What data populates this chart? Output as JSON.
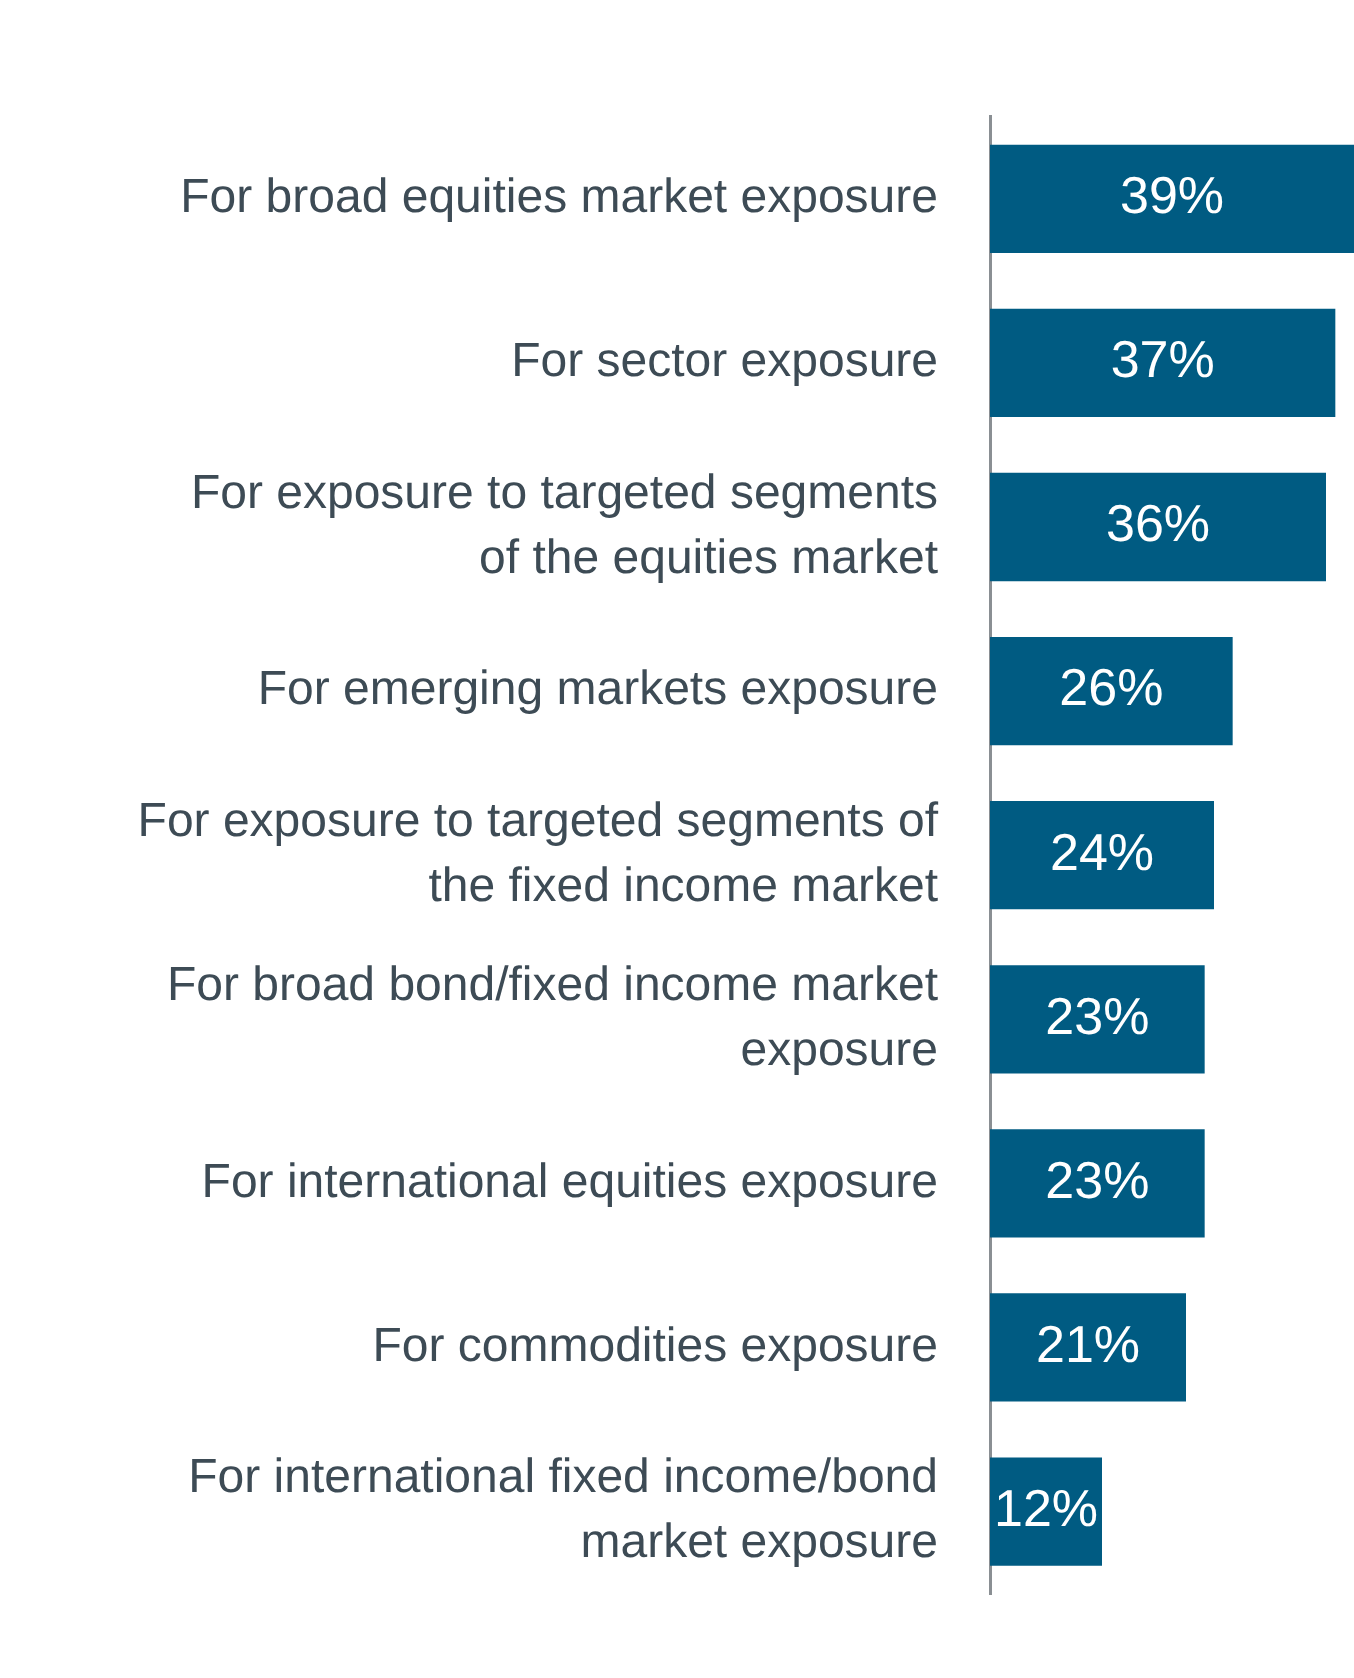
{
  "chart_data": {
    "type": "bar",
    "orientation": "horizontal",
    "categories": [
      "For broad equities market exposure",
      "For sector exposure",
      "For exposure to targeted segments\nof the equities market",
      "For emerging markets exposure",
      "For exposure to targeted segments of\nthe fixed income market",
      "For broad bond/fixed income market\nexposure",
      "For international equities exposure",
      "For commodities exposure",
      "For international fixed income/bond\nmarket exposure"
    ],
    "values": [
      39,
      37,
      36,
      26,
      24,
      23,
      23,
      21,
      12
    ],
    "value_labels": [
      "39%",
      "37%",
      "36%",
      "26%",
      "24%",
      "23%",
      "23%",
      "21%",
      "12%"
    ],
    "color": "#005b82",
    "xlim": [
      0,
      39
    ],
    "tick_labels": "y",
    "grid": false,
    "legend": false
  }
}
